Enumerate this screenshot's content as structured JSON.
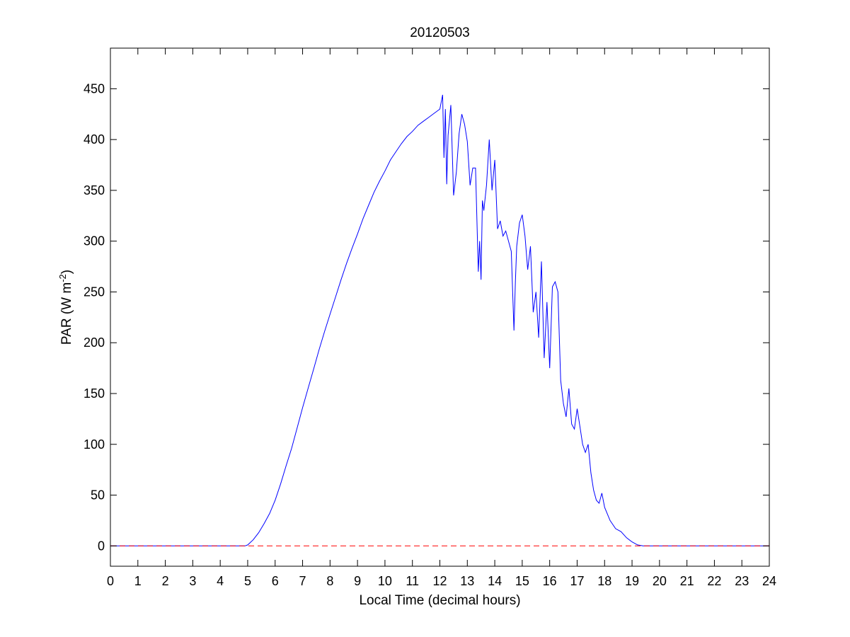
{
  "chart_data": {
    "type": "line",
    "title": "20120503",
    "xlabel": "Local Time (decimal hours)",
    "ylabel": {
      "base": "PAR (W m",
      "superscript": "-2",
      "suffix": ")"
    },
    "xlim": [
      0,
      24
    ],
    "ylim": [
      -20,
      490
    ],
    "xticks": [
      0,
      1,
      2,
      3,
      4,
      5,
      6,
      7,
      8,
      9,
      10,
      11,
      12,
      13,
      14,
      15,
      16,
      17,
      18,
      19,
      20,
      21,
      22,
      23,
      24
    ],
    "yticks": [
      0,
      50,
      100,
      150,
      200,
      250,
      300,
      350,
      400,
      450
    ],
    "grid": false,
    "colors": {
      "series": "#0000ff",
      "reference": "#ff0000",
      "axes": "#000000"
    },
    "series": [
      {
        "x": [
          0,
          4.9,
          5.0,
          5.2,
          5.4,
          5.6,
          5.8,
          6.0,
          6.2,
          6.4,
          6.6,
          6.8,
          7.0,
          7.2,
          7.4,
          7.6,
          7.8,
          8.0,
          8.2,
          8.4,
          8.6,
          8.8,
          9.0,
          9.2,
          9.4,
          9.6,
          9.8,
          10.0,
          10.2,
          10.4,
          10.6,
          10.8,
          11.0,
          11.2,
          11.4,
          11.6,
          11.8,
          12.0,
          12.1,
          12.15,
          12.2,
          12.25,
          12.3,
          12.4,
          12.5,
          12.6,
          12.7,
          12.8,
          12.9,
          13.0,
          13.1,
          13.2,
          13.3,
          13.4,
          13.45,
          13.5,
          13.55,
          13.6,
          13.7,
          13.8,
          13.9,
          14.0,
          14.1,
          14.2,
          14.3,
          14.4,
          14.5,
          14.6,
          14.7,
          14.75,
          14.8,
          14.9,
          15.0,
          15.1,
          15.2,
          15.3,
          15.4,
          15.5,
          15.6,
          15.7,
          15.8,
          15.9,
          16.0,
          16.1,
          16.2,
          16.3,
          16.4,
          16.5,
          16.6,
          16.7,
          16.8,
          16.9,
          17.0,
          17.1,
          17.2,
          17.3,
          17.4,
          17.5,
          17.6,
          17.7,
          17.8,
          17.9,
          18.0,
          18.2,
          18.4,
          18.6,
          18.8,
          19.0,
          19.2,
          19.4,
          24
        ],
        "y": [
          0,
          0,
          1,
          6,
          13,
          22,
          32,
          45,
          61,
          79,
          96,
          116,
          136,
          155,
          174,
          193,
          211,
          228,
          245,
          262,
          278,
          293,
          307,
          322,
          335,
          348,
          359,
          369,
          380,
          388,
          396,
          403,
          408,
          414,
          418,
          422,
          426,
          430,
          444,
          382,
          430,
          356,
          404,
          434,
          345,
          368,
          406,
          425,
          415,
          398,
          355,
          372,
          372,
          270,
          300,
          262,
          340,
          330,
          355,
          400,
          350,
          380,
          312,
          320,
          305,
          310,
          300,
          290,
          212,
          260,
          295,
          318,
          326,
          305,
          272,
          295,
          230,
          250,
          205,
          280,
          185,
          240,
          175,
          255,
          260,
          250,
          163,
          140,
          127,
          155,
          120,
          115,
          135,
          118,
          100,
          92,
          100,
          72,
          55,
          45,
          42,
          52,
          38,
          25,
          17,
          14,
          8,
          4,
          1,
          0,
          0
        ]
      },
      {
        "x": [
          0,
          24
        ],
        "y": [
          0,
          0
        ]
      }
    ]
  }
}
